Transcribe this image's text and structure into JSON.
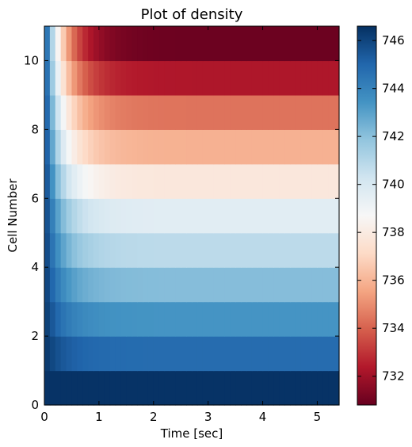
{
  "chart_data": {
    "type": "heatmap",
    "title": "Plot of density",
    "xlabel": "Time [sec]",
    "ylabel": "Cell Number",
    "xlim": [
      0,
      5.4
    ],
    "ylim": [
      0,
      11
    ],
    "x_ticks": [
      "0",
      "1",
      "2",
      "3",
      "4",
      "5"
    ],
    "y_ticks": [
      "0",
      "2",
      "4",
      "6",
      "8",
      "10"
    ],
    "colorbar": {
      "colormap": "RdBu",
      "min": 730.8,
      "max": 746.6,
      "ticks": [
        "732",
        "734",
        "736",
        "738",
        "740",
        "742",
        "744",
        "746"
      ]
    },
    "cells": [
      0,
      1,
      2,
      3,
      4,
      5,
      6,
      7,
      8,
      9,
      10
    ],
    "initial_density": 746.5,
    "final_density": [
      746.5,
      744.8,
      743.4,
      742.1,
      740.8,
      739.6,
      737.8,
      735.9,
      734.4,
      732.3,
      730.9
    ],
    "time_constant_sec": 0.35
  }
}
